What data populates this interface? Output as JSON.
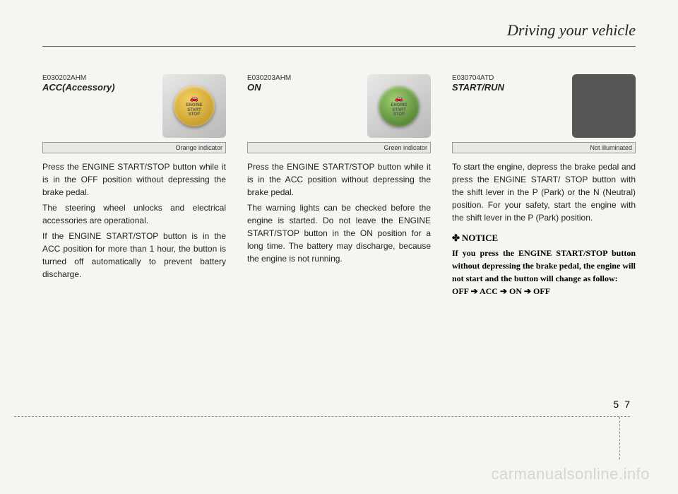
{
  "header": {
    "section_title": "Driving your vehicle"
  },
  "col1": {
    "code": "E030202AHM",
    "title": "ACC(Accessory)",
    "caption": "Orange indicator",
    "button": {
      "line1": "ENGINE",
      "line2": "START",
      "line3": "STOP"
    },
    "p1": "Press the ENGINE START/STOP button while it is in the OFF position without depressing the brake pedal.",
    "p2": "The steering wheel unlocks and electrical accessories are operational.",
    "p3": "If the ENGINE START/STOP button is in the ACC position for more than 1 hour, the button is turned off automatically to prevent battery discharge."
  },
  "col2": {
    "code": "E030203AHM",
    "title": "ON",
    "caption": "Green indicator",
    "button": {
      "line1": "ENGINE",
      "line2": "START",
      "line3": "STOP"
    },
    "p1": "Press the ENGINE START/STOP button while it is in the ACC position without depressing the brake pedal.",
    "p2": "The warning lights can be checked before the engine is started. Do not leave the ENGINE START/STOP button in the ON position for a long time. The battery may discharge, because the engine is not running."
  },
  "col3": {
    "code": "E030704ATD",
    "title": "START/RUN",
    "caption": "Not illuminated",
    "p1": "To start the engine, depress the brake pedal and press the ENGINE START/ STOP button with the shift lever in the P (Park) or the N (Neutral) position. For your safety, start the engine with the shift lever in the P (Park) position.",
    "notice_label": "NOTICE",
    "notice_p1": "If you press the ENGINE START/STOP button without depressing the brake pedal, the engine will not start and the button will change as follow:",
    "notice_p2": "OFF ➔ ACC ➔ ON ➔ OFF"
  },
  "footer": {
    "page_chapter": "5",
    "page_num": "7",
    "watermark": "carmanualsonline.info"
  }
}
